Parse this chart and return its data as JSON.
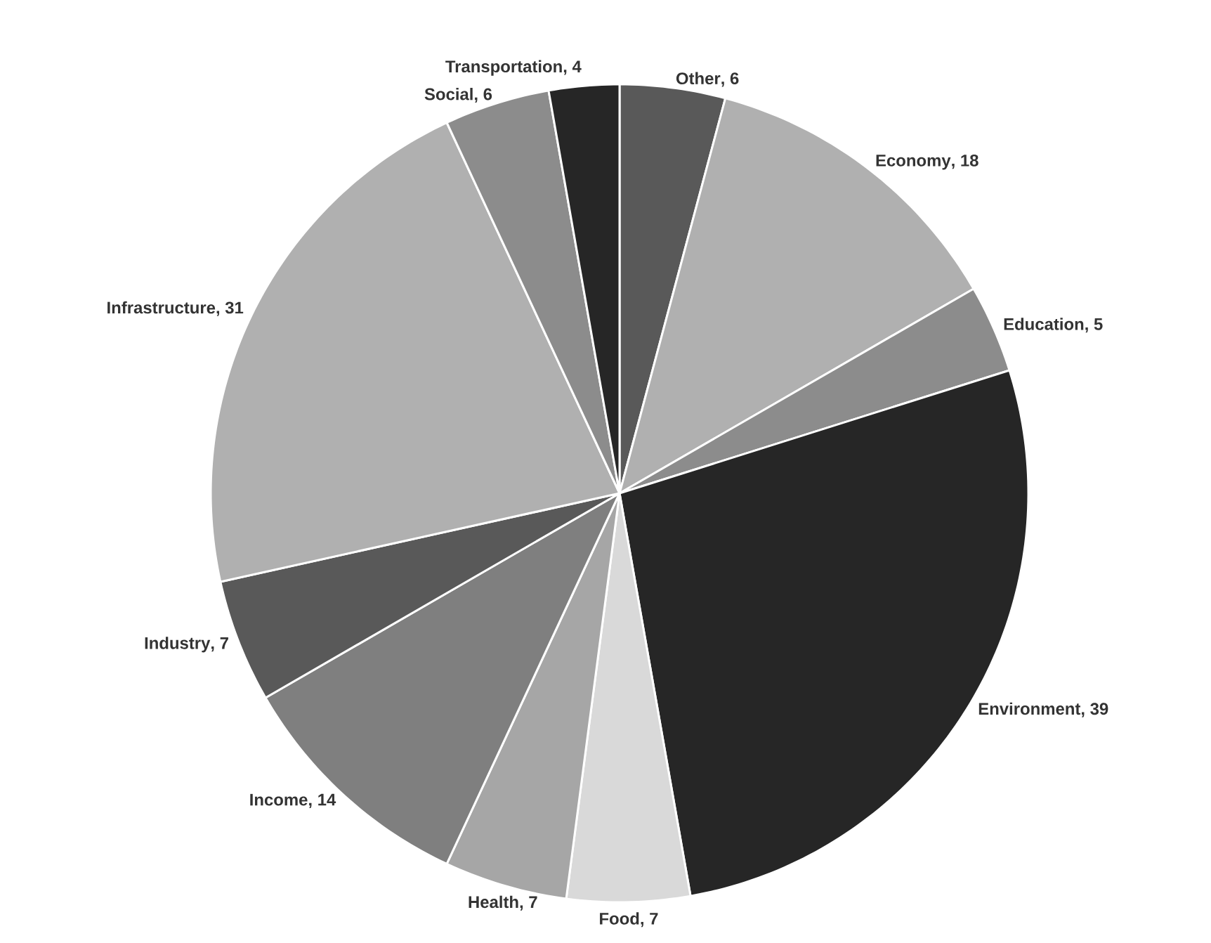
{
  "chart_data": {
    "type": "pie",
    "categories": [
      "Other",
      "Economy",
      "Education",
      "Environment",
      "Food",
      "Health",
      "Income",
      "Industry",
      "Infrastructure",
      "Social",
      "Transportation"
    ],
    "values": [
      6,
      18,
      5,
      39,
      7,
      7,
      14,
      7,
      31,
      6,
      4
    ],
    "colors": [
      "#595959",
      "#b0b0b0",
      "#8c8c8c",
      "#262626",
      "#d9d9d9",
      "#a6a6a6",
      "#7f7f7f",
      "#595959",
      "#b0b0b0",
      "#8c8c8c",
      "#262626"
    ],
    "value_labels": [
      ", 6",
      ", 18",
      ", 5",
      ", 39",
      ", 7",
      ", 7",
      ", 14",
      ", 7",
      ", 31",
      ", 6",
      ", 4"
    ]
  }
}
